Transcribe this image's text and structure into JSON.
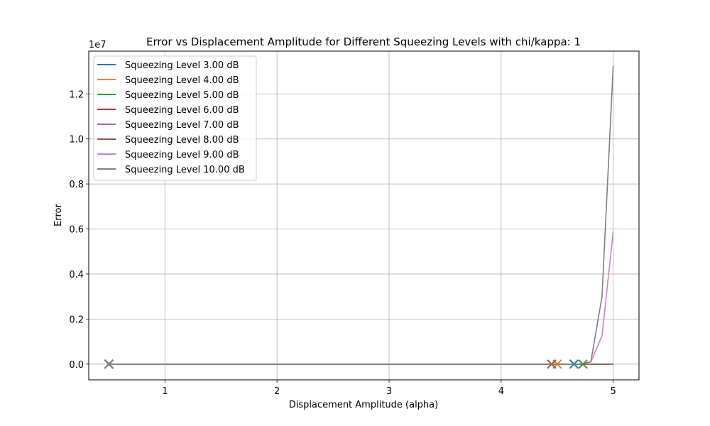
{
  "chart_data": {
    "type": "line",
    "title": "Error vs Displacement Amplitude for Different Squeezing Levels with chi/kappa: 1",
    "xlabel": "Displacement Amplitude (alpha)",
    "ylabel": "Error",
    "y_offset_text": "1e7",
    "xlim": [
      0.32,
      5.23
    ],
    "ylim": [
      -0.07,
      1.39
    ],
    "x_ticks": [
      1,
      2,
      3,
      4,
      5
    ],
    "x_tick_labels": [
      "1",
      "2",
      "3",
      "4",
      "5"
    ],
    "y_ticks": [
      0.0,
      0.2,
      0.4,
      0.6,
      0.8,
      1.0,
      1.2
    ],
    "y_tick_labels": [
      "0.0",
      "0.2",
      "0.4",
      "0.6",
      "0.8",
      "1.0",
      "1.2"
    ],
    "grid": true,
    "legend_position": "upper-left",
    "y_units_note": "values in units of 1e7",
    "series": [
      {
        "name": "Squeezing Level 3.00 dB",
        "color": "#1f77b4",
        "x": [
          0.5,
          4.65,
          4.7,
          4.8,
          4.9,
          5.0
        ],
        "y": [
          0,
          0,
          0,
          0,
          0,
          0
        ],
        "markers": [
          [
            0.5,
            0
          ],
          [
            4.65,
            0
          ]
        ]
      },
      {
        "name": "Squeezing Level 4.00 dB",
        "color": "#ff7f0e",
        "x": [
          0.5,
          4.5,
          4.6,
          4.7,
          4.8,
          4.9,
          5.0
        ],
        "y": [
          0,
          0,
          0,
          0,
          0,
          0,
          0
        ],
        "markers": [
          [
            0.5,
            0
          ],
          [
            4.5,
            0
          ]
        ]
      },
      {
        "name": "Squeezing Level 5.00 dB",
        "color": "#2ca02c",
        "x": [
          0.5,
          4.73,
          4.8,
          4.9,
          5.0
        ],
        "y": [
          0,
          0,
          0,
          0,
          0
        ],
        "markers": [
          [
            0.5,
            0
          ],
          [
            4.73,
            0
          ]
        ]
      },
      {
        "name": "Squeezing Level 6.00 dB",
        "color": "#d62728",
        "x": [
          0.5,
          4.6,
          4.7,
          4.8,
          4.9,
          5.0
        ],
        "y": [
          0,
          0,
          0,
          0,
          0,
          0
        ],
        "markers": [
          [
            0.5,
            0
          ]
        ]
      },
      {
        "name": "Squeezing Level 7.00 dB",
        "color": "#9467bd",
        "x": [
          0.5,
          4.7,
          4.8,
          4.9,
          5.0
        ],
        "y": [
          0,
          0,
          0,
          0,
          0
        ],
        "markers": [
          [
            0.5,
            0
          ]
        ]
      },
      {
        "name": "Squeezing Level 8.00 dB",
        "color": "#8c564b",
        "x": [
          0.5,
          4.45,
          4.5,
          4.6,
          4.7,
          4.8,
          4.9,
          5.0
        ],
        "y": [
          0,
          0,
          0,
          0,
          0,
          0,
          0,
          0
        ],
        "markers": [
          [
            0.5,
            0
          ],
          [
            4.45,
            0
          ]
        ]
      },
      {
        "name": "Squeezing Level 9.00 dB",
        "color": "#e377c2",
        "x": [
          0.5,
          4.6,
          4.7,
          4.8,
          4.9,
          5.0
        ],
        "y": [
          0,
          0,
          0,
          0.01,
          0.125,
          0.59
        ],
        "markers": [
          [
            0.5,
            0
          ]
        ]
      },
      {
        "name": "Squeezing Level 10.00 dB",
        "color": "#7f7f7f",
        "x": [
          0.5,
          4.6,
          4.7,
          4.8,
          4.9,
          5.0
        ],
        "y": [
          0,
          0,
          0,
          0.01,
          0.3,
          1.325
        ],
        "markers": [
          [
            0.5,
            0
          ]
        ]
      }
    ]
  }
}
